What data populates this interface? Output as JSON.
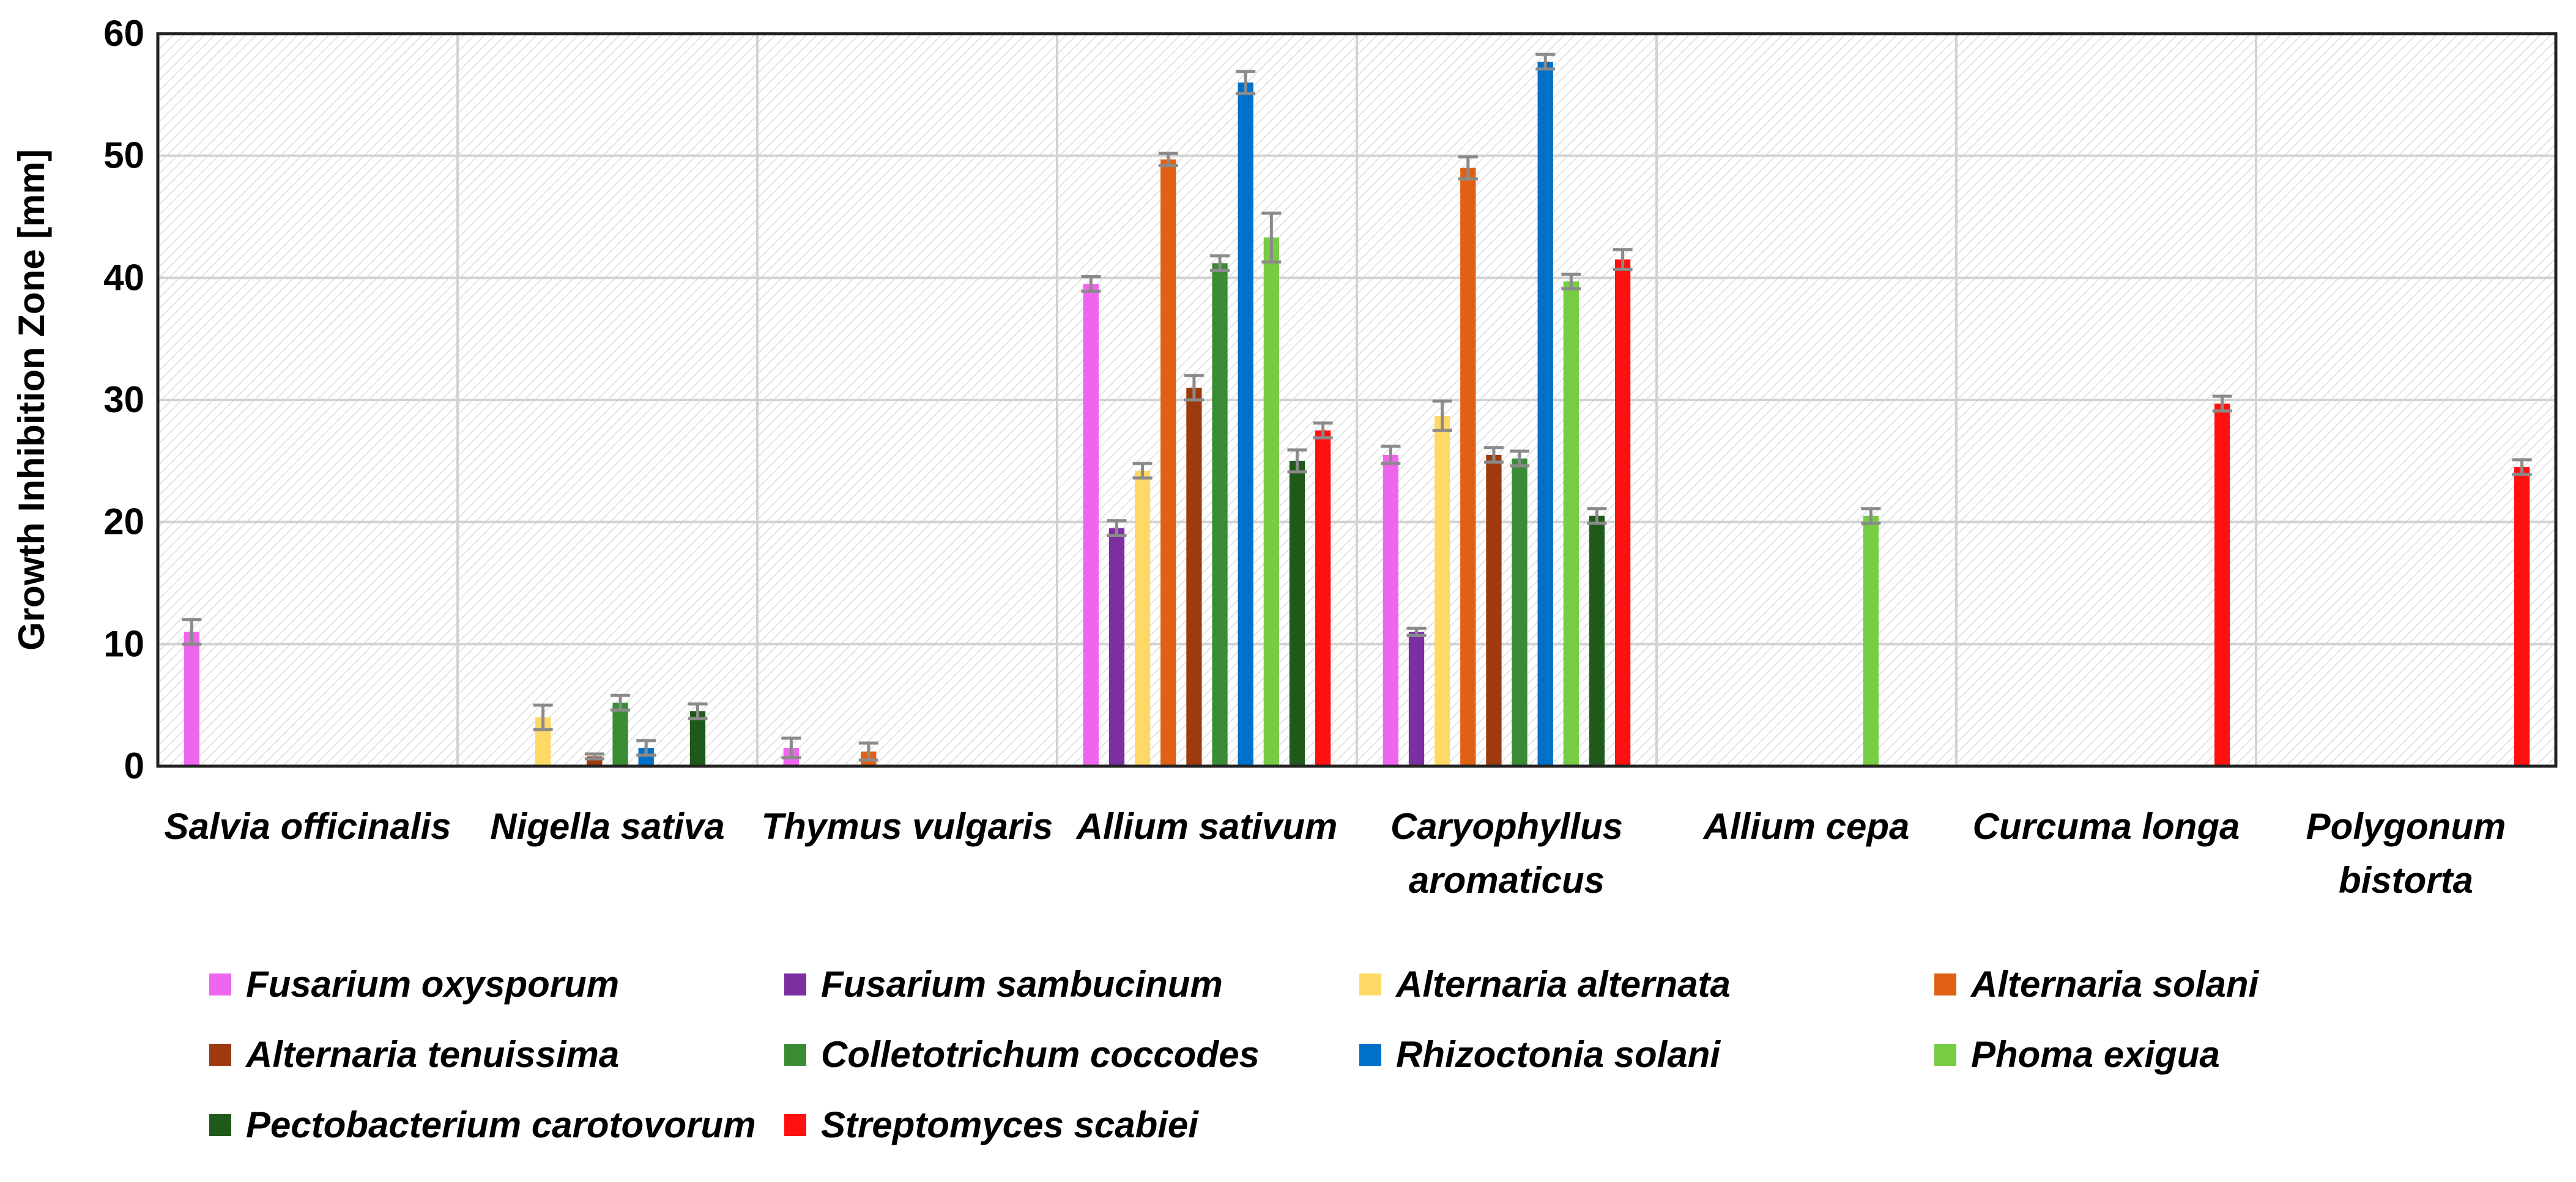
{
  "chart_data": {
    "type": "bar",
    "title": "",
    "xlabel": "",
    "ylabel": "Growth Inhibition Zone [mm]",
    "ylim": [
      0,
      60
    ],
    "yticks": [
      0,
      10,
      20,
      30,
      40,
      50,
      60
    ],
    "grid": true,
    "legend_position": "bottom",
    "categories": [
      [
        "Salvia officinalis"
      ],
      [
        "Nigella sativa"
      ],
      [
        "Thymus vulgaris"
      ],
      [
        "Allium sativum"
      ],
      [
        "Caryophyllus",
        "aromaticus"
      ],
      [
        "Allium cepa"
      ],
      [
        "Curcuma longa"
      ],
      [
        "Polygonum",
        "bistorta"
      ]
    ],
    "series": [
      {
        "name": "Fusarium oxysporum",
        "color": "#EE66EE",
        "values": [
          11,
          0,
          1.5,
          39.5,
          25.5,
          0,
          0,
          0
        ],
        "errors": [
          1,
          0,
          0.8,
          0.6,
          0.7,
          0,
          0,
          0
        ]
      },
      {
        "name": "Fusarium sambucinum",
        "color": "#7B2FA0",
        "values": [
          0,
          0,
          0,
          19.5,
          11,
          0,
          0,
          0
        ],
        "errors": [
          0,
          0,
          0,
          0.6,
          0.3,
          0,
          0,
          0
        ]
      },
      {
        "name": "Alternaria alternata",
        "color": "#FFD966",
        "values": [
          0,
          4,
          0,
          24.2,
          28.7,
          0,
          0,
          0
        ],
        "errors": [
          0,
          1,
          0,
          0.6,
          1.2,
          0,
          0,
          0
        ]
      },
      {
        "name": "Alternaria solani",
        "color": "#E06014",
        "values": [
          0,
          0,
          1.2,
          49.7,
          49,
          0,
          0,
          0
        ],
        "errors": [
          0,
          0,
          0.7,
          0.5,
          0.9,
          0,
          0,
          0
        ]
      },
      {
        "name": "Alternaria tenuissima",
        "color": "#9E3A10",
        "values": [
          0,
          0.8,
          0,
          31,
          25.5,
          0,
          0,
          0
        ],
        "errors": [
          0,
          0.2,
          0,
          1,
          0.6,
          0,
          0,
          0
        ]
      },
      {
        "name": "Colletotrichum coccodes",
        "color": "#3A8C34",
        "values": [
          0,
          5.2,
          0,
          41.2,
          25.2,
          0,
          0,
          0
        ],
        "errors": [
          0,
          0.6,
          0,
          0.6,
          0.6,
          0,
          0,
          0
        ]
      },
      {
        "name": "Rhizoctonia solani",
        "color": "#0070C8",
        "values": [
          0,
          1.5,
          0,
          56,
          57.7,
          0,
          0,
          0
        ],
        "errors": [
          0,
          0.6,
          0,
          0.9,
          0.6,
          0,
          0,
          0
        ]
      },
      {
        "name": "Phoma exigua",
        "color": "#77CC44",
        "values": [
          0,
          0,
          0,
          43.3,
          39.7,
          20.5,
          0,
          0
        ],
        "errors": [
          0,
          0,
          0,
          2,
          0.6,
          0.6,
          0,
          0
        ]
      },
      {
        "name": "Pectobacterium carotovorum",
        "color": "#1F5A1A",
        "values": [
          0,
          4.5,
          0,
          25,
          20.5,
          0,
          0,
          0
        ],
        "errors": [
          0,
          0.6,
          0,
          0.9,
          0.6,
          0,
          0,
          0
        ]
      },
      {
        "name": "Streptomyces scabiei",
        "color": "#FF1010",
        "values": [
          0,
          0,
          0,
          27.5,
          41.5,
          0,
          29.7,
          24.5
        ],
        "errors": [
          0,
          0,
          0,
          0.6,
          0.8,
          0,
          0.6,
          0.6
        ]
      }
    ]
  }
}
